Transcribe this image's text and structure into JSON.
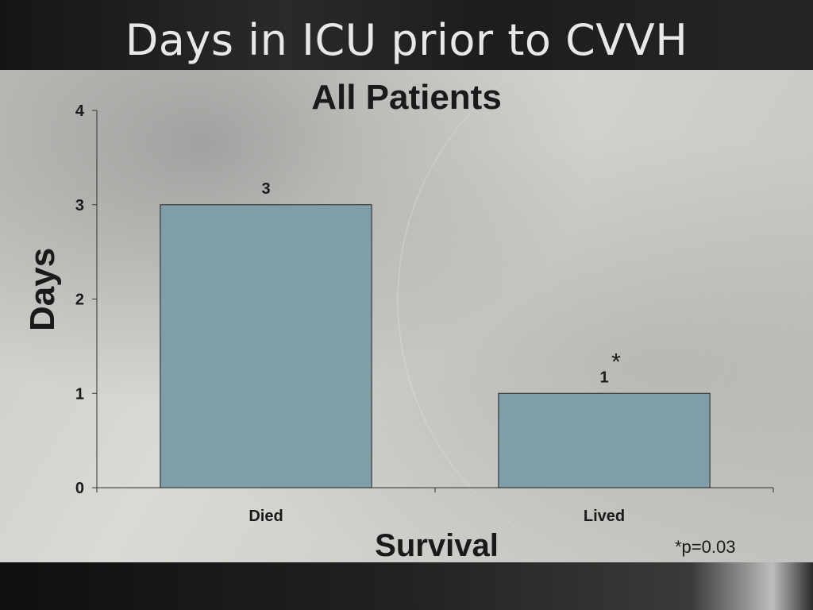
{
  "slide": {
    "title": "Days in ICU prior to CVVH",
    "footnote": "*p=0.03"
  },
  "chart_data": {
    "type": "bar",
    "title": "All Patients",
    "xlabel": "Survival",
    "ylabel": "Days",
    "categories": [
      "Died",
      "Lived"
    ],
    "values": [
      3,
      1
    ],
    "data_labels": [
      "3",
      "1"
    ],
    "annotations": [
      {
        "category": "Lived",
        "text": "*"
      }
    ],
    "ylim": [
      0,
      4
    ],
    "yticks": [
      0,
      1,
      2,
      3,
      4
    ],
    "grid": false,
    "legend": "none",
    "bar_color": "#809ea8"
  }
}
